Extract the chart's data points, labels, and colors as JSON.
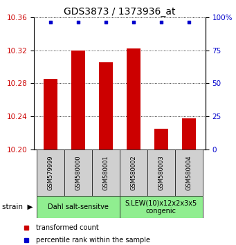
{
  "title": "GDS3873 / 1373936_at",
  "samples": [
    "GSM579999",
    "GSM580000",
    "GSM580001",
    "GSM580002",
    "GSM580003",
    "GSM580004"
  ],
  "bar_values": [
    10.285,
    10.32,
    10.305,
    10.322,
    10.225,
    10.238
  ],
  "bar_bottom": 10.2,
  "dot_y_right_pct": 96,
  "bar_color": "#cc0000",
  "dot_color": "#0000cc",
  "ylim_left": [
    10.2,
    10.36
  ],
  "ylim_right": [
    0,
    100
  ],
  "yticks_left": [
    10.2,
    10.24,
    10.28,
    10.32,
    10.36
  ],
  "yticks_right": [
    0,
    25,
    50,
    75,
    100
  ],
  "ytick_labels_right": [
    "0",
    "25",
    "50",
    "75",
    "100%"
  ],
  "groups": [
    {
      "label": "Dahl salt-sensitve",
      "start_idx": 0,
      "end_idx": 2,
      "color": "#90EE90"
    },
    {
      "label": "S.LEW(10)x12x2x3x5\ncongenic",
      "start_idx": 3,
      "end_idx": 5,
      "color": "#90EE90"
    }
  ],
  "sample_box_color": "#d0d0d0",
  "legend_items": [
    {
      "color": "#cc0000",
      "marker": "s",
      "label": "transformed count"
    },
    {
      "color": "#0000cc",
      "marker": "s",
      "label": "percentile rank within the sample"
    }
  ],
  "title_fontsize": 10,
  "tick_fontsize": 7.5,
  "sample_fontsize": 6,
  "group_fontsize": 7,
  "legend_fontsize": 7,
  "axis_color_left": "#cc0000",
  "axis_color_right": "#0000cc",
  "bar_width": 0.5,
  "xlim": [
    -0.6,
    5.6
  ]
}
